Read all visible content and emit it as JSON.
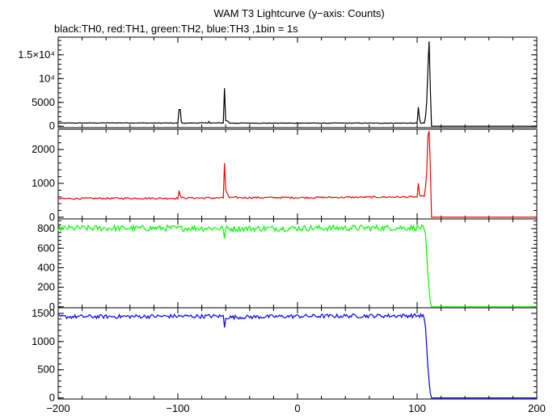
{
  "chart_data": {
    "type": "line",
    "title": "WAM T3 Lightcurve (y−axis: Counts)",
    "subtitle": "black:TH0, red:TH1, green:TH2, blue:TH3 ,1bin = 1s",
    "xlabel": "",
    "xlim": [
      -200,
      200
    ],
    "x_ticks": [
      -200,
      -100,
      0,
      100,
      200
    ],
    "x_tick_labels": [
      "−200",
      "−100",
      "0",
      "100",
      "200"
    ],
    "grid": false,
    "legend": "none",
    "panels": [
      {
        "series_name": "TH0",
        "color": "#000000",
        "ylim": [
          -300,
          18700
        ],
        "y_ticks": [
          0,
          5000,
          10000,
          15000
        ],
        "y_tick_labels": [
          "0",
          "5000",
          "10⁴",
          "1.5×10⁴"
        ],
        "baseline": 650,
        "noise": 60,
        "end_level": 0,
        "points": [
          [
            -200,
            650
          ],
          [
            -150,
            700
          ],
          [
            -100,
            650
          ],
          [
            -99,
            3500
          ],
          [
            -98,
            3500
          ],
          [
            -97,
            800
          ],
          [
            -96,
            650
          ],
          [
            -75,
            700
          ],
          [
            -74,
            1000
          ],
          [
            -73,
            650
          ],
          [
            -62,
            700
          ],
          [
            -61,
            8000
          ],
          [
            -60,
            1200
          ],
          [
            -58,
            1000
          ],
          [
            -57,
            650
          ],
          [
            0,
            650
          ],
          [
            50,
            650
          ],
          [
            100,
            650
          ],
          [
            101,
            4000
          ],
          [
            102,
            1500
          ],
          [
            103,
            700
          ],
          [
            104,
            650
          ],
          [
            105,
            700
          ],
          [
            106,
            650
          ],
          [
            107,
            2000
          ],
          [
            108,
            5000
          ],
          [
            109,
            12000
          ],
          [
            110,
            17800
          ],
          [
            111,
            8000
          ],
          [
            112,
            0
          ],
          [
            200,
            0
          ]
        ]
      },
      {
        "series_name": "TH1",
        "color": "#ff0000",
        "ylim": [
          -50,
          2600
        ],
        "y_ticks": [
          0,
          1000,
          2000
        ],
        "y_tick_labels": [
          "0",
          "1000",
          "2000"
        ],
        "baseline": 550,
        "noise": 25,
        "end_level": 0,
        "points": [
          [
            -200,
            550
          ],
          [
            -150,
            560
          ],
          [
            -100,
            560
          ],
          [
            -99,
            780
          ],
          [
            -98,
            650
          ],
          [
            -97,
            570
          ],
          [
            -62,
            570
          ],
          [
            -61,
            1600
          ],
          [
            -60,
            800
          ],
          [
            -58,
            650
          ],
          [
            -57,
            580
          ],
          [
            0,
            580
          ],
          [
            50,
            590
          ],
          [
            100,
            600
          ],
          [
            101,
            1000
          ],
          [
            102,
            650
          ],
          [
            103,
            600
          ],
          [
            106,
            620
          ],
          [
            107,
            900
          ],
          [
            108,
            1300
          ],
          [
            109,
            2400
          ],
          [
            110,
            2550
          ],
          [
            111,
            1500
          ],
          [
            112,
            0
          ],
          [
            200,
            0
          ]
        ]
      },
      {
        "series_name": "TH2",
        "color": "#00ff00",
        "ylim": [
          -10,
          900
        ],
        "y_ticks": [
          0,
          200,
          400,
          600,
          800
        ],
        "y_tick_labels": [
          "0",
          "200",
          "400",
          "600",
          "800"
        ],
        "baseline": 805,
        "noise": 30,
        "end_level": 0,
        "points": [
          [
            -200,
            805
          ],
          [
            -100,
            805
          ],
          [
            -62,
            805
          ],
          [
            -61,
            700
          ],
          [
            -60,
            800
          ],
          [
            0,
            805
          ],
          [
            100,
            810
          ],
          [
            105,
            810
          ],
          [
            106,
            790
          ],
          [
            107,
            740
          ],
          [
            108,
            550
          ],
          [
            109,
            330
          ],
          [
            110,
            180
          ],
          [
            111,
            40
          ],
          [
            112,
            0
          ],
          [
            200,
            0
          ]
        ]
      },
      {
        "series_name": "TH3",
        "color": "#0000ff",
        "ylim": [
          -20,
          1600
        ],
        "y_ticks": [
          0,
          500,
          1000,
          1500
        ],
        "y_tick_labels": [
          "0",
          "500",
          "1000",
          "1500"
        ],
        "baseline": 1440,
        "noise": 35,
        "end_level": 0,
        "points": [
          [
            -200,
            1440
          ],
          [
            -100,
            1450
          ],
          [
            -62,
            1450
          ],
          [
            -61,
            1250
          ],
          [
            -60,
            1430
          ],
          [
            0,
            1450
          ],
          [
            100,
            1460
          ],
          [
            105,
            1460
          ],
          [
            106,
            1400
          ],
          [
            107,
            1250
          ],
          [
            108,
            900
          ],
          [
            109,
            550
          ],
          [
            110,
            300
          ],
          [
            111,
            80
          ],
          [
            112,
            0
          ],
          [
            200,
            0
          ]
        ]
      }
    ]
  }
}
